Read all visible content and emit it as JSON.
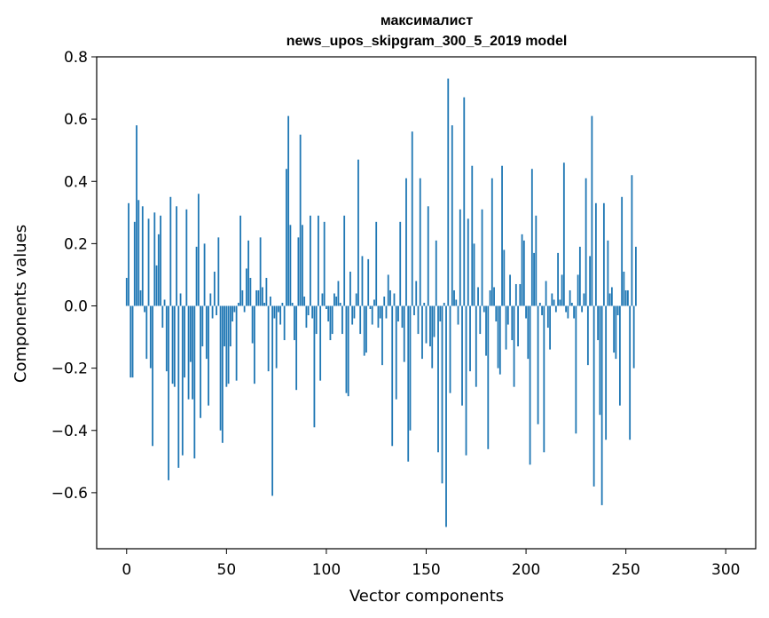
{
  "chart_data": {
    "type": "bar",
    "title": "максималист",
    "subtitle": "news_upos_skipgram_300_5_2019 model",
    "xlabel": "Vector components",
    "ylabel": "Components values",
    "xlim": [
      -15,
      315
    ],
    "ylim": [
      -0.78,
      0.8
    ],
    "xticks": [
      0,
      50,
      100,
      150,
      200,
      250,
      300
    ],
    "xtick_labels": [
      "0",
      "50",
      "100",
      "150",
      "200",
      "250",
      "300"
    ],
    "yticks": [
      -0.6,
      -0.4,
      -0.2,
      0.0,
      0.2,
      0.4,
      0.6,
      0.8
    ],
    "ytick_labels": [
      "−0.6",
      "−0.4",
      "−0.2",
      "0.0",
      "0.2",
      "0.4",
      "0.6",
      "0.8"
    ],
    "grid": false,
    "bar_color": "#1f77b4",
    "values": [
      0.09,
      0.33,
      -0.23,
      -0.23,
      0.27,
      0.58,
      0.34,
      0.05,
      0.32,
      -0.02,
      -0.17,
      0.28,
      -0.2,
      -0.45,
      0.3,
      0.13,
      0.23,
      0.29,
      -0.07,
      0.02,
      -0.21,
      -0.56,
      0.35,
      -0.25,
      -0.26,
      0.32,
      -0.52,
      0.04,
      -0.48,
      -0.23,
      0.31,
      -0.3,
      -0.18,
      -0.3,
      -0.49,
      0.19,
      0.36,
      -0.36,
      -0.13,
      0.2,
      -0.17,
      -0.32,
      0.04,
      -0.04,
      0.11,
      -0.03,
      0.22,
      -0.4,
      -0.44,
      -0.13,
      -0.26,
      -0.25,
      -0.13,
      -0.05,
      -0.02,
      -0.24,
      0.01,
      0.29,
      0.05,
      -0.02,
      0.12,
      0.21,
      0.09,
      -0.12,
      -0.25,
      0.05,
      0.05,
      0.22,
      0.06,
      0.01,
      0.09,
      -0.21,
      0.03,
      -0.61,
      -0.04,
      -0.2,
      -0.02,
      -0.06,
      0.01,
      -0.11,
      0.44,
      0.61,
      0.26,
      0.01,
      -0.11,
      -0.27,
      0.22,
      0.55,
      0.26,
      0.03,
      -0.07,
      -0.03,
      0.29,
      -0.04,
      -0.39,
      -0.09,
      0.29,
      -0.24,
      0.04,
      0.27,
      -0.01,
      -0.05,
      -0.11,
      -0.09,
      0.04,
      0.03,
      0.08,
      0.01,
      -0.09,
      0.29,
      -0.28,
      -0.29,
      0.11,
      -0.06,
      -0.04,
      0.04,
      0.47,
      -0.09,
      0.16,
      -0.16,
      -0.15,
      0.15,
      -0.01,
      -0.06,
      0.02,
      0.27,
      -0.07,
      -0.04,
      -0.19,
      0.03,
      -0.04,
      0.1,
      0.05,
      -0.45,
      0.04,
      -0.3,
      -0.05,
      0.27,
      -0.07,
      -0.18,
      0.41,
      -0.5,
      -0.4,
      0.56,
      -0.03,
      0.08,
      -0.09,
      0.41,
      -0.17,
      0.01,
      -0.12,
      0.32,
      -0.13,
      -0.2,
      -0.1,
      0.21,
      -0.47,
      -0.05,
      -0.57,
      0.01,
      -0.71,
      0.73,
      -0.28,
      0.58,
      0.05,
      0.02,
      -0.06,
      0.31,
      -0.32,
      0.67,
      -0.48,
      0.28,
      -0.21,
      0.45,
      0.2,
      -0.26,
      0.06,
      -0.09,
      0.31,
      -0.02,
      -0.16,
      -0.46,
      0.05,
      0.41,
      0.06,
      -0.05,
      -0.2,
      -0.22,
      0.45,
      0.18,
      -0.14,
      -0.06,
      0.1,
      -0.11,
      -0.26,
      0.07,
      -0.13,
      0.07,
      0.23,
      0.21,
      -0.04,
      -0.17,
      -0.51,
      0.44,
      0.17,
      0.29,
      -0.38,
      0.01,
      -0.03,
      -0.47,
      0.08,
      -0.07,
      -0.14,
      0.04,
      0.02,
      -0.02,
      0.17,
      0.02,
      0.1,
      0.46,
      -0.02,
      -0.04,
      0.05,
      0.01,
      -0.04,
      -0.41,
      0.1,
      0.19,
      -0.02,
      0.04,
      0.41,
      -0.19,
      0.16,
      0.61,
      -0.58,
      0.33,
      -0.11,
      -0.35,
      -0.64,
      0.33,
      -0.43,
      0.21,
      0.04,
      0.06,
      -0.15,
      -0.17,
      -0.03,
      -0.32,
      0.35,
      0.11,
      0.05,
      0.05,
      -0.43,
      0.42,
      -0.2,
      0.19
    ],
    "series": [
      {
        "values_ref": "values"
      }
    ]
  }
}
